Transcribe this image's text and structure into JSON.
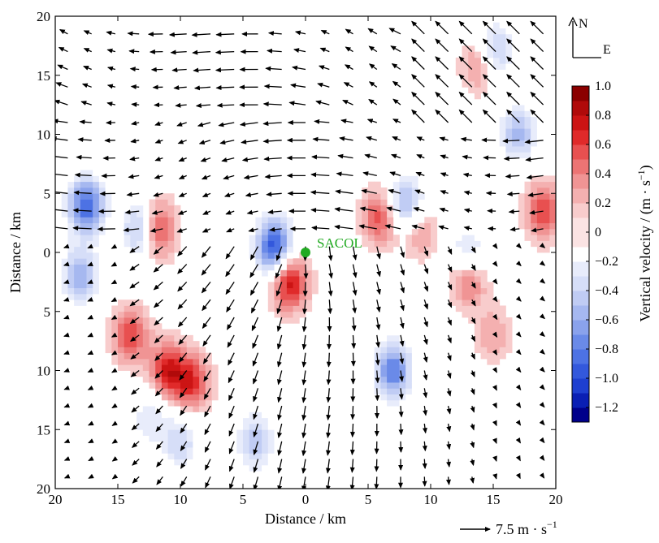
{
  "chart_data": {
    "type": "heatmap",
    "title": "",
    "xlabel": "Distance / km",
    "ylabel": "Distance / km",
    "xlim": [
      -20,
      20
    ],
    "ylim": [
      -20,
      20
    ],
    "x_ticks": [
      "20",
      "15",
      "10",
      "5",
      "0",
      "5",
      "10",
      "15",
      "20"
    ],
    "y_ticks": [
      "20",
      "15",
      "10",
      "5",
      "0",
      "5",
      "10",
      "15",
      "20"
    ],
    "grid": false,
    "site": {
      "name": "SACOL",
      "x": 0,
      "y": 0,
      "color": "#22aa22"
    },
    "compass": {
      "north": "N",
      "east": "E"
    },
    "vector_reference": {
      "label": "7.5 m · s",
      "superscript": "−1",
      "speed": 7.5
    },
    "colorbar": {
      "title": "Vertical velocity / (m · s",
      "title_superscript": "−1",
      "title_end": ")",
      "ticks": [
        "1.0",
        "0.8",
        "0.6",
        "0.4",
        "0.2",
        "0",
        "−0.2",
        "−0.4",
        "−0.6",
        "−0.8",
        "−1.0",
        "−1.2"
      ],
      "levels": [
        -1.3,
        -1.2,
        -1.1,
        -1.0,
        -0.9,
        -0.8,
        -0.7,
        -0.6,
        -0.5,
        -0.4,
        -0.3,
        -0.2,
        -0.1,
        0.1,
        0.2,
        0.3,
        0.4,
        0.5,
        0.6,
        0.7,
        0.8,
        0.9,
        1.0
      ],
      "colors": [
        "#00008b",
        "#0a1fb4",
        "#1e3fd0",
        "#3358dc",
        "#4d72e4",
        "#6a8ae8",
        "#8aa2ec",
        "#a6b8f0",
        "#c0ccf4",
        "#d6def8",
        "#e8ecfb",
        "#ffffff",
        "#fbe3e3",
        "#f8cccc",
        "#f4b0b0",
        "#f09494",
        "#ec7474",
        "#e85050",
        "#e02a2a",
        "#cc1414",
        "#b00a0a",
        "#8b0000"
      ],
      "range": [
        -1.3,
        1.0
      ]
    },
    "updraft_features": [
      {
        "x": -12,
        "y": 2,
        "w": 0.9
      },
      {
        "x": -1.3,
        "y": -2.5,
        "w": 0.8
      },
      {
        "x": 17,
        "y": 9,
        "w": 0.7
      },
      {
        "x": 6,
        "y": 3,
        "w": 0.6
      },
      {
        "x": 13,
        "y": -2,
        "w": 0.7
      },
      {
        "x": -14,
        "y": -7,
        "w": 0.6
      },
      {
        "x": -11,
        "y": -10,
        "w": 0.7
      },
      {
        "x": -9,
        "y": -11,
        "w": 0.6
      },
      {
        "x": 14,
        "y": 16,
        "w": 0.5
      },
      {
        "x": 19,
        "y": 3.5,
        "w": 0.6
      },
      {
        "x": 15,
        "y": -7,
        "w": 0.3
      },
      {
        "x": 9,
        "y": 2,
        "w": 0.4
      }
    ],
    "downdraft_features": [
      {
        "x": -2.5,
        "y": 0.5,
        "w": -1.0
      },
      {
        "x": -17.5,
        "y": 4,
        "w": -0.9
      },
      {
        "x": -13,
        "y": 2,
        "w": -0.8
      },
      {
        "x": 17,
        "y": 9.5,
        "w": -1.2
      },
      {
        "x": -18,
        "y": -2,
        "w": -0.6
      },
      {
        "x": 8,
        "y": 4,
        "w": -0.7
      },
      {
        "x": 13,
        "y": -0.5,
        "w": -0.6
      },
      {
        "x": 7,
        "y": -10,
        "w": -0.8
      },
      {
        "x": 15,
        "y": 17,
        "w": -0.6
      },
      {
        "x": -10,
        "y": -16,
        "w": -0.4
      },
      {
        "x": -4,
        "y": -16,
        "w": -0.5
      },
      {
        "x": -12.5,
        "y": -14,
        "w": -0.3
      }
    ],
    "wind_field": {
      "units": "m/s",
      "cyclonic_center": {
        "x": -1,
        "y": -1
      },
      "north_flow_from_east": 6.5,
      "south_flow_from_north": 5.0
    }
  }
}
